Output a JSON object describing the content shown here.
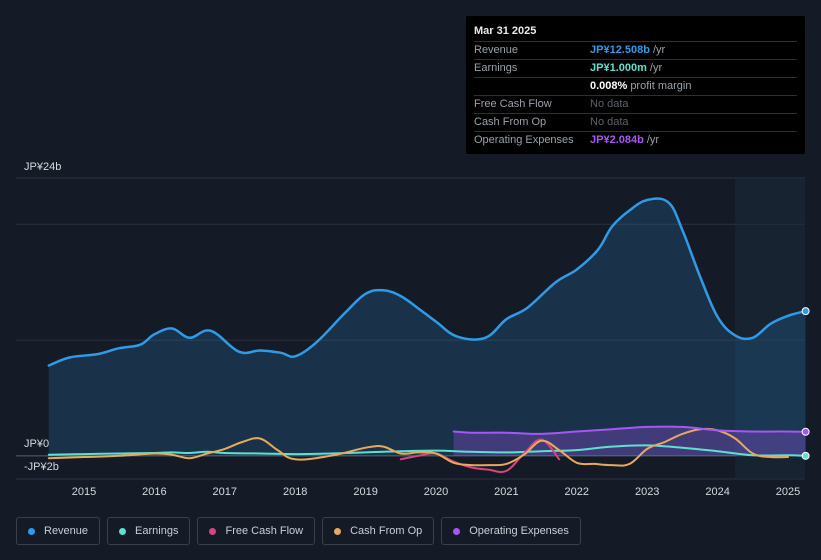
{
  "tooltip": {
    "date": "Mar 31 2025",
    "rows": [
      {
        "label": "Revenue",
        "value": "JP¥12.508b",
        "unit": "/yr",
        "color": "#2f9be8"
      },
      {
        "label": "Earnings",
        "value": "JP¥1.000m",
        "unit": "/yr",
        "color": "#5ee0d0"
      },
      {
        "label": "",
        "value": "0.008%",
        "unit": "profit margin",
        "color": "#ffffff"
      },
      {
        "label": "Free Cash Flow",
        "nodata": "No data"
      },
      {
        "label": "Cash From Op",
        "nodata": "No data"
      },
      {
        "label": "Operating Expenses",
        "value": "JP¥2.084b",
        "unit": "/yr",
        "color": "#a855f7"
      }
    ]
  },
  "legend": [
    {
      "label": "Revenue",
      "color": "#2f9be8"
    },
    {
      "label": "Earnings",
      "color": "#5ee0d0"
    },
    {
      "label": "Free Cash Flow",
      "color": "#d6457e"
    },
    {
      "label": "Cash From Op",
      "color": "#e9a95c"
    },
    {
      "label": "Operating Expenses",
      "color": "#a855f7"
    }
  ],
  "chart_data": {
    "type": "area",
    "y_unit": "JP¥ billions",
    "ylim": [
      -2,
      24
    ],
    "y_tick_labels": [
      {
        "value": 24,
        "label": "JP¥24b"
      },
      {
        "value": 0,
        "label": "JP¥0"
      },
      {
        "value": -2,
        "label": "-JP¥2b"
      }
    ],
    "gridlines": [
      24,
      20,
      10,
      0,
      -2
    ],
    "x_tick_labels": [
      "2015",
      "2016",
      "2017",
      "2018",
      "2019",
      "2020",
      "2021",
      "2022",
      "2023",
      "2024",
      "2025"
    ],
    "forecast_region_start": 2024.25,
    "series": [
      {
        "name": "Revenue",
        "color": "#2f9be8",
        "area": true,
        "x": [
          2014.5,
          2014.8,
          2015.2,
          2015.5,
          2015.8,
          2016.0,
          2016.25,
          2016.5,
          2016.8,
          2017.2,
          2017.5,
          2017.8,
          2018.0,
          2018.3,
          2018.7,
          2019.0,
          2019.25,
          2019.5,
          2019.8,
          2020.0,
          2020.3,
          2020.7,
          2021.0,
          2021.3,
          2021.7,
          2022.0,
          2022.3,
          2022.5,
          2022.75,
          2023.0,
          2023.3,
          2023.5,
          2023.75,
          2024.0,
          2024.25,
          2024.5,
          2024.75,
          2025.0,
          2025.25
        ],
        "values": [
          7.8,
          8.5,
          8.8,
          9.3,
          9.6,
          10.5,
          11.0,
          10.2,
          10.8,
          9.0,
          9.1,
          8.9,
          8.6,
          9.8,
          12.3,
          14.0,
          14.3,
          13.8,
          12.5,
          11.6,
          10.3,
          10.2,
          11.8,
          12.8,
          15.0,
          16.1,
          17.8,
          19.8,
          21.2,
          22.1,
          21.9,
          19.5,
          15.5,
          12.0,
          10.4,
          10.2,
          11.4,
          12.1,
          12.5
        ]
      },
      {
        "name": "Earnings",
        "color": "#5ee0d0",
        "area": false,
        "x": [
          2014.5,
          2015.0,
          2015.5,
          2016.0,
          2016.25,
          2016.5,
          2016.75,
          2017.0,
          2017.5,
          2018.0,
          2018.5,
          2019.0,
          2019.5,
          2020.0,
          2020.5,
          2021.0,
          2021.5,
          2022.0,
          2022.5,
          2023.0,
          2023.5,
          2024.0,
          2024.5,
          2025.0,
          2025.25
        ],
        "values": [
          0.1,
          0.15,
          0.2,
          0.25,
          0.3,
          0.25,
          0.35,
          0.25,
          0.2,
          0.15,
          0.2,
          0.3,
          0.4,
          0.45,
          0.35,
          0.3,
          0.4,
          0.5,
          0.8,
          0.9,
          0.7,
          0.4,
          0.05,
          0.05,
          0.001
        ]
      },
      {
        "name": "Free Cash Flow",
        "color": "#d6457e",
        "area": false,
        "x": [
          2019.5,
          2019.75,
          2020.0,
          2020.25,
          2020.5,
          2020.75,
          2021.0,
          2021.25,
          2021.5,
          2021.75
        ],
        "values": [
          -0.3,
          0.0,
          0.2,
          -0.5,
          -1.0,
          -1.2,
          -1.3,
          0.2,
          1.4,
          -0.3
        ]
      },
      {
        "name": "Cash From Op",
        "color": "#e9a95c",
        "area": false,
        "x": [
          2014.5,
          2015.0,
          2015.5,
          2016.0,
          2016.25,
          2016.5,
          2016.75,
          2017.0,
          2017.25,
          2017.5,
          2017.75,
          2018.0,
          2018.5,
          2019.0,
          2019.25,
          2019.5,
          2019.75,
          2020.0,
          2020.25,
          2020.5,
          2020.75,
          2021.0,
          2021.25,
          2021.5,
          2021.75,
          2022.0,
          2022.25,
          2022.5,
          2022.75,
          2023.0,
          2023.25,
          2023.5,
          2023.75,
          2024.0,
          2024.25,
          2024.5,
          2024.75,
          2025.0
        ],
        "values": [
          -0.2,
          -0.1,
          0.0,
          0.2,
          0.1,
          -0.2,
          0.2,
          0.6,
          1.2,
          1.5,
          0.5,
          -0.3,
          0.0,
          0.7,
          0.8,
          0.2,
          0.3,
          0.2,
          -0.6,
          -0.8,
          -0.8,
          -0.7,
          0.1,
          1.3,
          0.5,
          -0.6,
          -0.7,
          -0.8,
          -0.7,
          0.6,
          1.2,
          1.9,
          2.3,
          2.2,
          1.5,
          0.2,
          -0.1,
          -0.1
        ]
      },
      {
        "name": "Operating Expenses",
        "color": "#a855f7",
        "area": true,
        "x": [
          2020.25,
          2020.5,
          2021.0,
          2021.5,
          2022.0,
          2022.5,
          2023.0,
          2023.5,
          2024.0,
          2024.5,
          2025.0,
          2025.25
        ],
        "values": [
          2.1,
          2.0,
          2.0,
          1.9,
          2.1,
          2.3,
          2.5,
          2.5,
          2.2,
          2.1,
          2.1,
          2.08
        ]
      }
    ]
  }
}
